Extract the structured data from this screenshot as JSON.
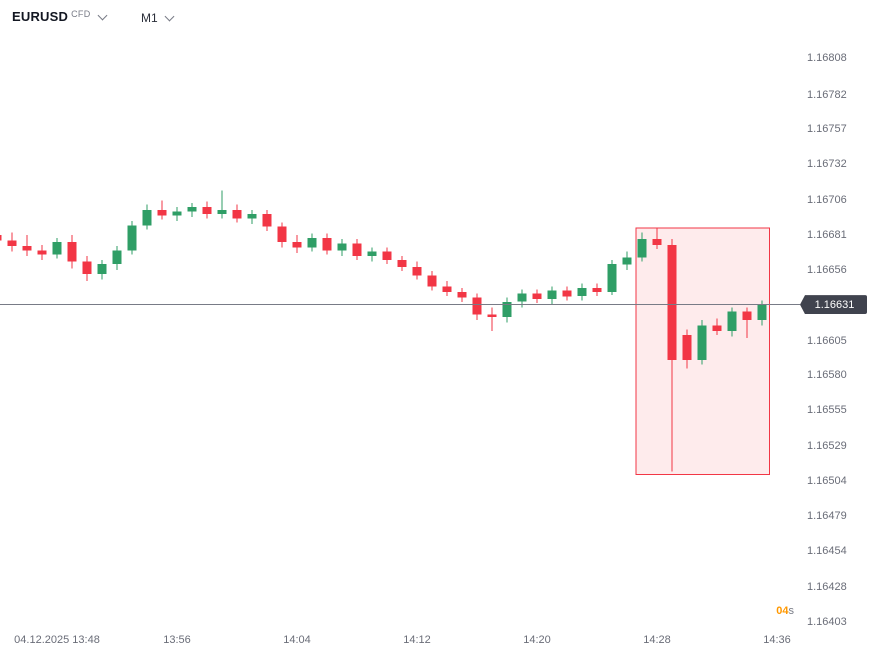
{
  "header": {
    "symbol": "EURUSD",
    "market_type": "CFD",
    "timeframe": "M1"
  },
  "price_axis": {
    "ticks": [
      "1.16808",
      "1.16782",
      "1.16757",
      "1.16732",
      "1.16706",
      "1.16681",
      "1.16656",
      "1.16631",
      "1.16605",
      "1.16580",
      "1.16555",
      "1.16529",
      "1.16504",
      "1.16479",
      "1.16454",
      "1.16428",
      "1.16403"
    ],
    "current_price_label": "1.16631"
  },
  "time_axis": {
    "ticks": [
      {
        "label": "04.12.2025 13:48",
        "minute": 4
      },
      {
        "label": "13:56",
        "minute": 12
      },
      {
        "label": "14:04",
        "minute": 20
      },
      {
        "label": "14:12",
        "minute": 28
      },
      {
        "label": "14:20",
        "minute": 36
      },
      {
        "label": "14:28",
        "minute": 44
      },
      {
        "label": "14:36",
        "minute": 52
      }
    ]
  },
  "countdown": {
    "value": "04",
    "unit": "s"
  },
  "colors": {
    "up": "#2f9e66",
    "down": "#f23645",
    "box_fill": "rgba(242,54,69,0.10)",
    "box_border": "#f23645",
    "price_line": "#787b86",
    "badge_bg": "#40434e",
    "badge_text": "#ffffff",
    "axis_text": "#6a6d78",
    "countdown_value": "#ff9800",
    "countdown_unit": "#787b86"
  },
  "chart_data": {
    "type": "candlestick",
    "symbol": "EURUSD",
    "timeframe": "M1",
    "date": "04.12.2025",
    "current_price": 1.16631,
    "price_range": {
      "top": 1.1685,
      "bottom": 1.16397
    },
    "start_time": "13:44",
    "minutes_per_candle": 1,
    "candles": [
      {
        "t": "13:44",
        "o": 1.16681,
        "h": 1.16684,
        "l": 1.16674,
        "c": 1.16677
      },
      {
        "t": "13:45",
        "o": 1.16677,
        "h": 1.16683,
        "l": 1.16669,
        "c": 1.16673
      },
      {
        "t": "13:46",
        "o": 1.16673,
        "h": 1.16681,
        "l": 1.16666,
        "c": 1.1667
      },
      {
        "t": "13:47",
        "o": 1.1667,
        "h": 1.16674,
        "l": 1.16663,
        "c": 1.16667
      },
      {
        "t": "13:48",
        "o": 1.16667,
        "h": 1.16679,
        "l": 1.16664,
        "c": 1.16676
      },
      {
        "t": "13:49",
        "o": 1.16676,
        "h": 1.16681,
        "l": 1.16657,
        "c": 1.16662
      },
      {
        "t": "13:50",
        "o": 1.16662,
        "h": 1.16666,
        "l": 1.16648,
        "c": 1.16653
      },
      {
        "t": "13:51",
        "o": 1.16653,
        "h": 1.16663,
        "l": 1.16649,
        "c": 1.1666
      },
      {
        "t": "13:52",
        "o": 1.1666,
        "h": 1.16673,
        "l": 1.16656,
        "c": 1.1667
      },
      {
        "t": "13:53",
        "o": 1.1667,
        "h": 1.16691,
        "l": 1.16667,
        "c": 1.16688
      },
      {
        "t": "13:54",
        "o": 1.16688,
        "h": 1.16703,
        "l": 1.16685,
        "c": 1.16699
      },
      {
        "t": "13:55",
        "o": 1.16699,
        "h": 1.16706,
        "l": 1.16692,
        "c": 1.16695
      },
      {
        "t": "13:56",
        "o": 1.16695,
        "h": 1.16701,
        "l": 1.16691,
        "c": 1.16698
      },
      {
        "t": "13:57",
        "o": 1.16698,
        "h": 1.16704,
        "l": 1.16694,
        "c": 1.16701
      },
      {
        "t": "13:58",
        "o": 1.16701,
        "h": 1.16705,
        "l": 1.16693,
        "c": 1.16696
      },
      {
        "t": "13:59",
        "o": 1.16696,
        "h": 1.16713,
        "l": 1.16693,
        "c": 1.16699
      },
      {
        "t": "14:00",
        "o": 1.16699,
        "h": 1.16703,
        "l": 1.1669,
        "c": 1.16693
      },
      {
        "t": "14:01",
        "o": 1.16693,
        "h": 1.16699,
        "l": 1.16689,
        "c": 1.16696
      },
      {
        "t": "14:02",
        "o": 1.16696,
        "h": 1.16699,
        "l": 1.16684,
        "c": 1.16687
      },
      {
        "t": "14:03",
        "o": 1.16687,
        "h": 1.1669,
        "l": 1.16672,
        "c": 1.16676
      },
      {
        "t": "14:04",
        "o": 1.16676,
        "h": 1.16681,
        "l": 1.16668,
        "c": 1.16672
      },
      {
        "t": "14:05",
        "o": 1.16672,
        "h": 1.16682,
        "l": 1.16669,
        "c": 1.16679
      },
      {
        "t": "14:06",
        "o": 1.16679,
        "h": 1.16682,
        "l": 1.16667,
        "c": 1.1667
      },
      {
        "t": "14:07",
        "o": 1.1667,
        "h": 1.16678,
        "l": 1.16666,
        "c": 1.16675
      },
      {
        "t": "14:08",
        "o": 1.16675,
        "h": 1.16678,
        "l": 1.16663,
        "c": 1.16666
      },
      {
        "t": "14:09",
        "o": 1.16666,
        "h": 1.16672,
        "l": 1.16662,
        "c": 1.16669
      },
      {
        "t": "14:10",
        "o": 1.16669,
        "h": 1.16672,
        "l": 1.1666,
        "c": 1.16663
      },
      {
        "t": "14:11",
        "o": 1.16663,
        "h": 1.16666,
        "l": 1.16655,
        "c": 1.16658
      },
      {
        "t": "14:12",
        "o": 1.16658,
        "h": 1.16662,
        "l": 1.16649,
        "c": 1.16652
      },
      {
        "t": "14:13",
        "o": 1.16652,
        "h": 1.16655,
        "l": 1.16641,
        "c": 1.16644
      },
      {
        "t": "14:14",
        "o": 1.16644,
        "h": 1.16648,
        "l": 1.16637,
        "c": 1.1664
      },
      {
        "t": "14:15",
        "o": 1.1664,
        "h": 1.16643,
        "l": 1.16633,
        "c": 1.16636
      },
      {
        "t": "14:16",
        "o": 1.16636,
        "h": 1.16639,
        "l": 1.1662,
        "c": 1.16624
      },
      {
        "t": "14:17",
        "o": 1.16624,
        "h": 1.16629,
        "l": 1.16612,
        "c": 1.16622
      },
      {
        "t": "14:18",
        "o": 1.16622,
        "h": 1.16636,
        "l": 1.16618,
        "c": 1.16633
      },
      {
        "t": "14:19",
        "o": 1.16633,
        "h": 1.16642,
        "l": 1.16629,
        "c": 1.16639
      },
      {
        "t": "14:20",
        "o": 1.16639,
        "h": 1.16642,
        "l": 1.16632,
        "c": 1.16635
      },
      {
        "t": "14:21",
        "o": 1.16635,
        "h": 1.16644,
        "l": 1.16631,
        "c": 1.16641
      },
      {
        "t": "14:22",
        "o": 1.16641,
        "h": 1.16644,
        "l": 1.16634,
        "c": 1.16637
      },
      {
        "t": "14:23",
        "o": 1.16637,
        "h": 1.16646,
        "l": 1.16634,
        "c": 1.16643
      },
      {
        "t": "14:24",
        "o": 1.16643,
        "h": 1.16646,
        "l": 1.16637,
        "c": 1.1664
      },
      {
        "t": "14:25",
        "o": 1.1664,
        "h": 1.16663,
        "l": 1.16638,
        "c": 1.1666
      },
      {
        "t": "14:26",
        "o": 1.1666,
        "h": 1.16669,
        "l": 1.16656,
        "c": 1.16665
      },
      {
        "t": "14:27",
        "o": 1.16665,
        "h": 1.16683,
        "l": 1.16662,
        "c": 1.16678
      },
      {
        "t": "14:28",
        "o": 1.16678,
        "h": 1.16686,
        "l": 1.16671,
        "c": 1.16674
      },
      {
        "t": "14:29",
        "o": 1.16674,
        "h": 1.16678,
        "l": 1.16511,
        "c": 1.16591
      },
      {
        "t": "14:30",
        "o": 1.16609,
        "h": 1.16613,
        "l": 1.16585,
        "c": 1.16591
      },
      {
        "t": "14:31",
        "o": 1.16591,
        "h": 1.1662,
        "l": 1.16588,
        "c": 1.16616
      },
      {
        "t": "14:32",
        "o": 1.16616,
        "h": 1.16621,
        "l": 1.16609,
        "c": 1.16612
      },
      {
        "t": "14:33",
        "o": 1.16612,
        "h": 1.16629,
        "l": 1.16608,
        "c": 1.16626
      },
      {
        "t": "14:34",
        "o": 1.16626,
        "h": 1.16629,
        "l": 1.16607,
        "c": 1.1662
      },
      {
        "t": "14:35",
        "o": 1.1662,
        "h": 1.16634,
        "l": 1.16616,
        "c": 1.16631
      }
    ],
    "highlight_box": {
      "start_minute": 42.6,
      "end_minute": 51.5,
      "price_top": 1.16686,
      "price_bottom": 1.16509
    }
  }
}
